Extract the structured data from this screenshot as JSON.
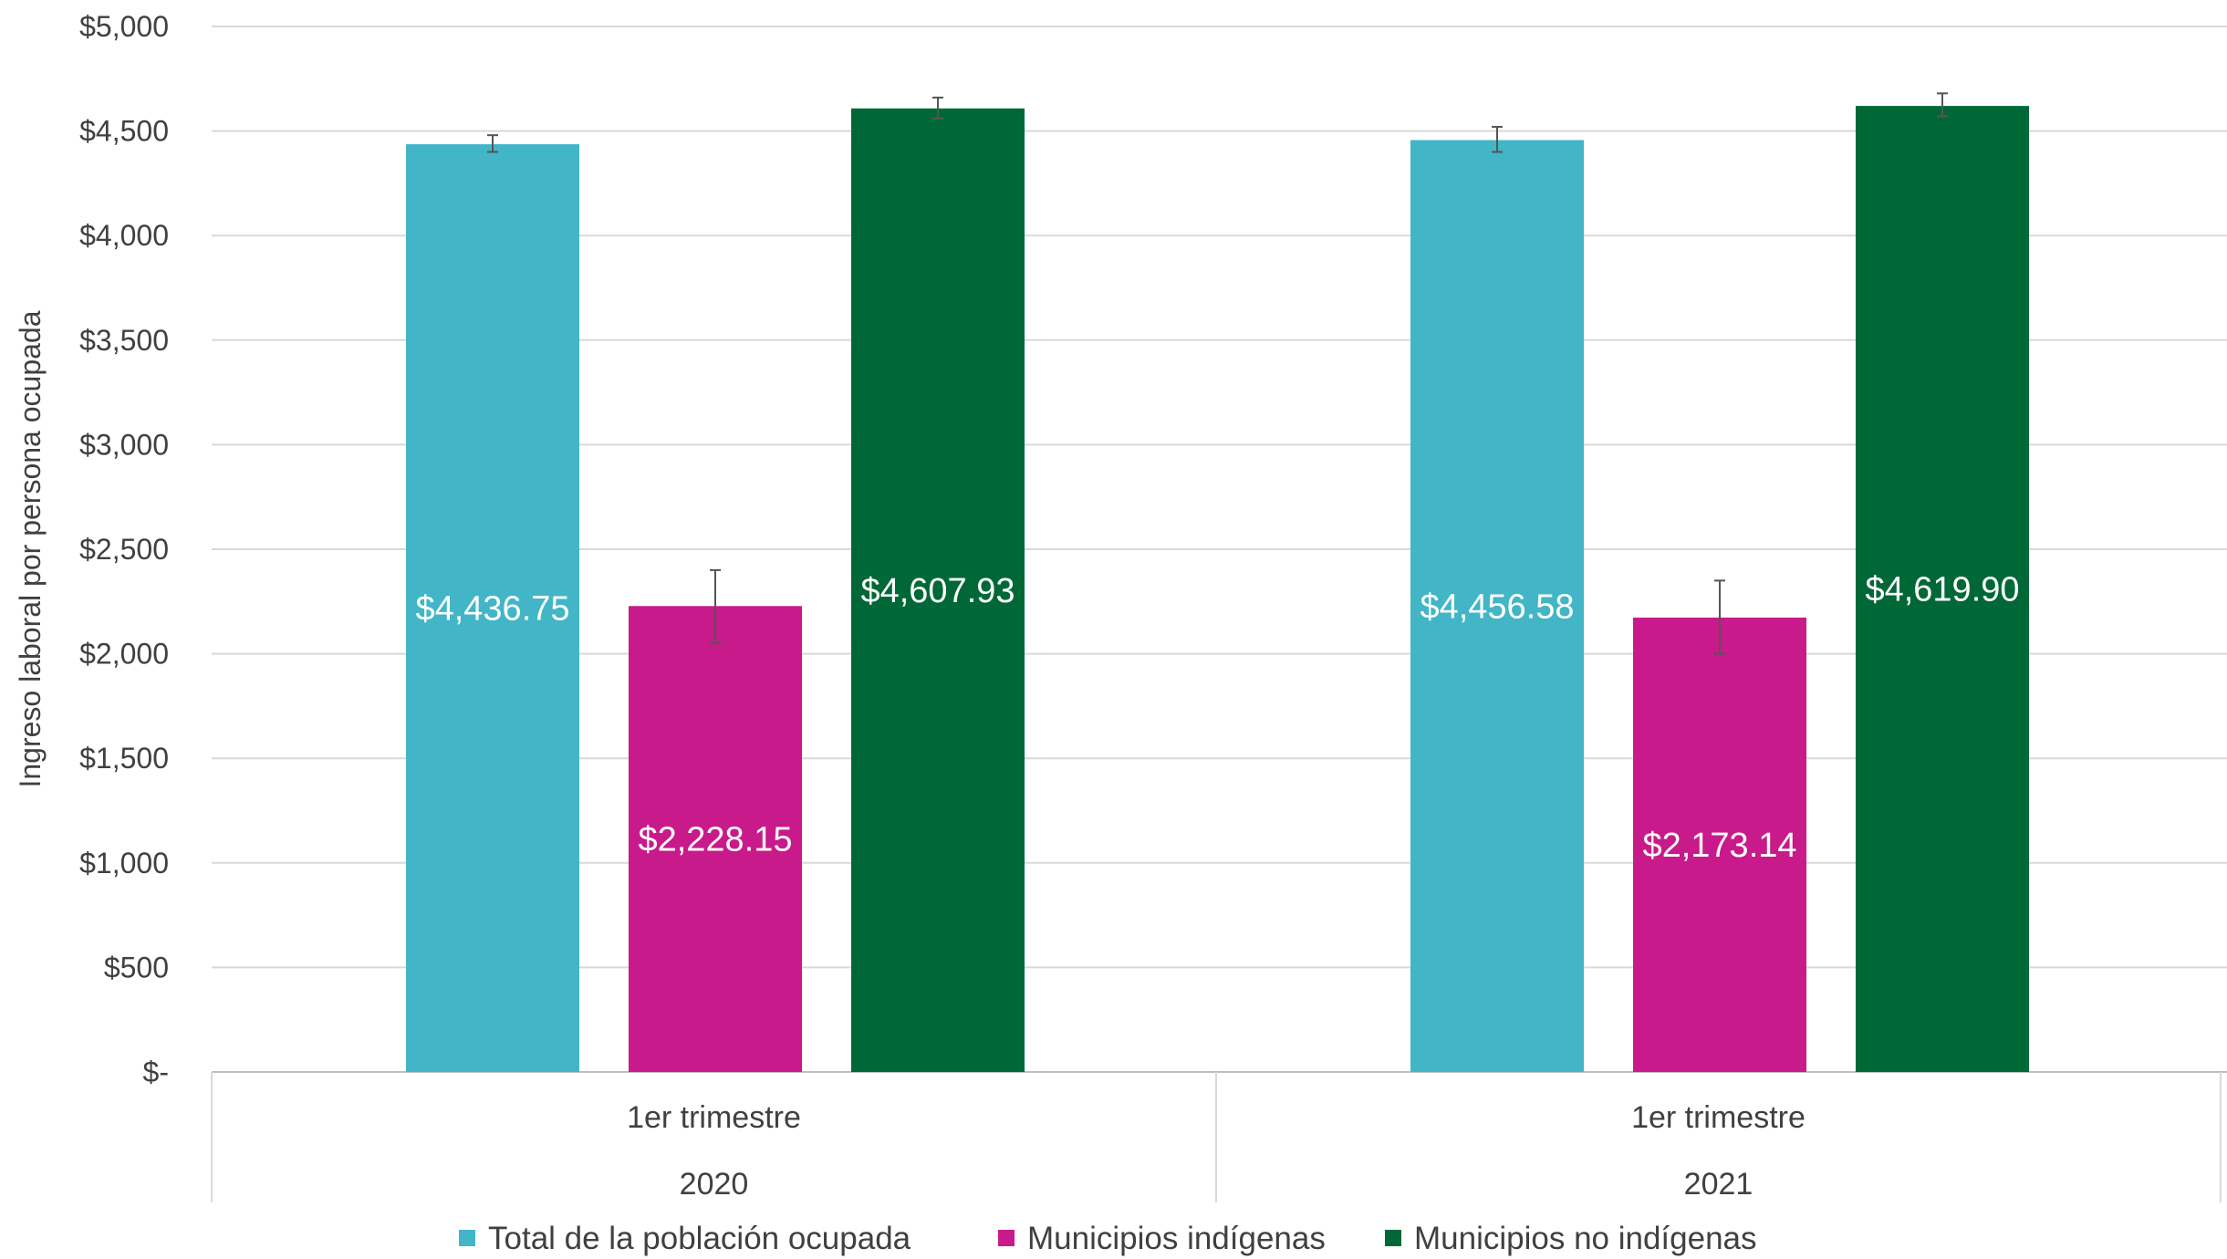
{
  "chart_data": {
    "type": "bar",
    "ylabel": "Ingreso laboral por persona ocupada",
    "ylim": [
      0,
      5000
    ],
    "ytick_values": [
      0,
      500,
      1000,
      1500,
      2000,
      2500,
      3000,
      3500,
      4000,
      4500,
      5000
    ],
    "ytick_labels": [
      "$-",
      "$500",
      "$1,000",
      "$1,500",
      "$2,000",
      "$2,500",
      "$3,000",
      "$3,500",
      "$4,000",
      "$4,500",
      "$5,000"
    ],
    "categories": [
      {
        "line1": "1er trimestre",
        "line2": "2020"
      },
      {
        "line1": "1er trimestre",
        "line2": "2021"
      }
    ],
    "grid": true,
    "legend_position": "bottom",
    "series": [
      {
        "name": "Total de la población ocupada",
        "color": "#42B6C6",
        "values": [
          4436.75,
          4456.58
        ],
        "labels": [
          "$4,436.75",
          "$4,456.58"
        ],
        "error": [
          [
            4400,
            4480
          ],
          [
            4400,
            4520
          ]
        ]
      },
      {
        "name": "Municipios indígenas",
        "color": "#C81A8A",
        "values": [
          2228.15,
          2173.14
        ],
        "labels": [
          "$2,228.15",
          "$2,173.14"
        ],
        "error": [
          [
            2050,
            2400
          ],
          [
            2000,
            2350
          ]
        ]
      },
      {
        "name": "Municipios no indígenas",
        "color": "#006837",
        "values": [
          4607.93,
          4619.9
        ],
        "labels": [
          "$4,607.93",
          "$4,619.90"
        ],
        "error": [
          [
            4560,
            4660
          ],
          [
            4570,
            4680
          ]
        ]
      }
    ]
  }
}
